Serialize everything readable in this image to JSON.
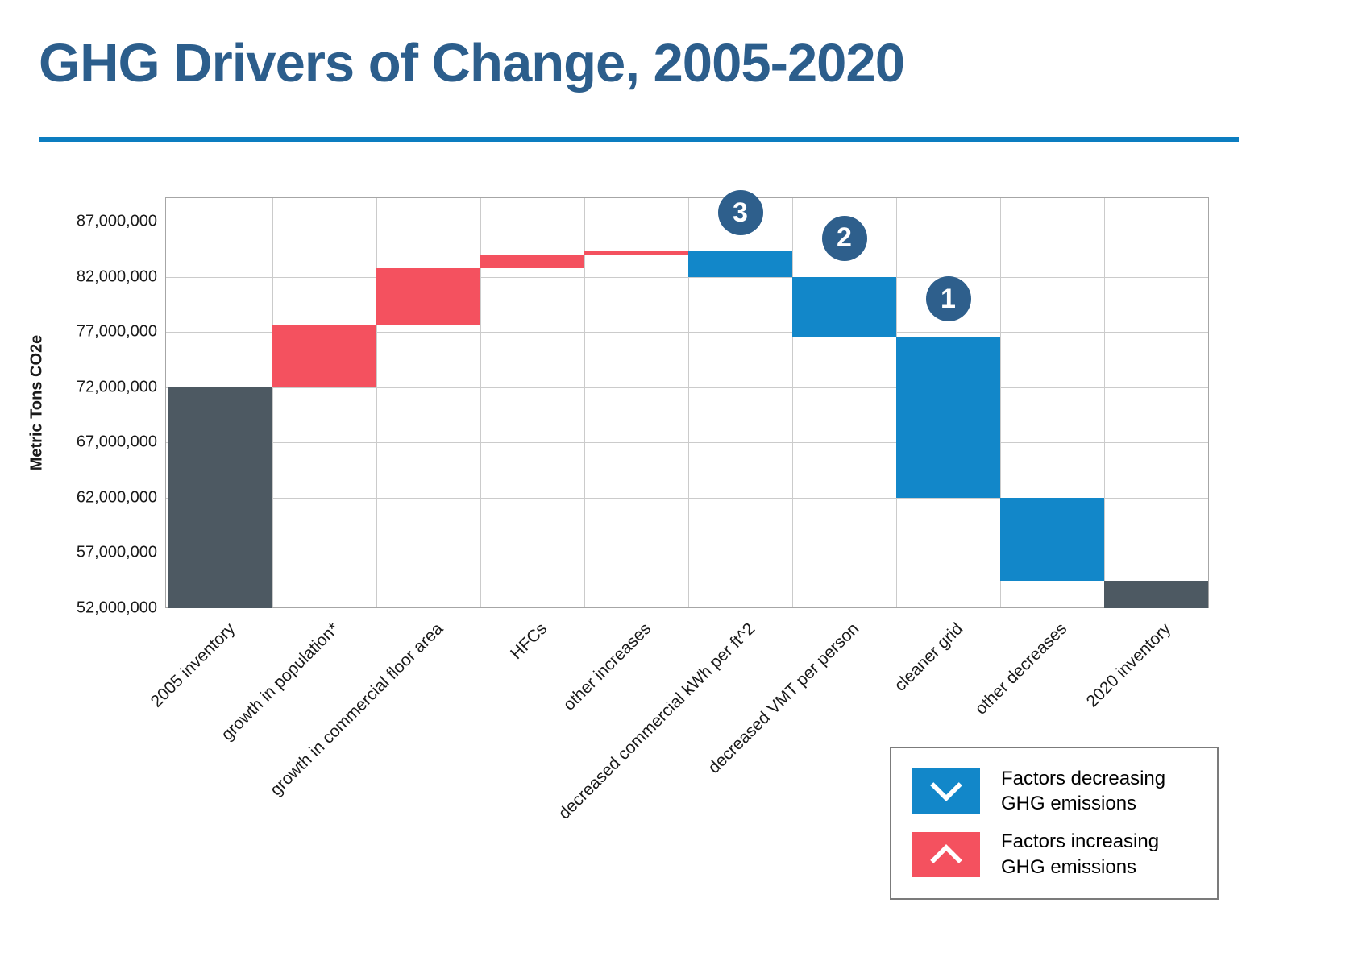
{
  "header": {
    "title": "GHG Drivers of Change, 2005-2020"
  },
  "colors": {
    "title": "#2C5E8C",
    "divider": "#0C7DC0",
    "total_bar": "#4D5962",
    "increase_bar": "#F4515F",
    "decrease_bar": "#1287C9",
    "annotation_circle": "#2E5F8C",
    "gridline": "#CBCBCB",
    "plot_border": "#A6A6A6"
  },
  "chart_data": {
    "type": "waterfall",
    "title": "GHG Drivers of Change, 2005-2020",
    "ylabel": "Metric Tons CO2e",
    "ylim": [
      52000000,
      87000000
    ],
    "yticks": [
      52000000,
      57000000,
      62000000,
      67000000,
      72000000,
      77000000,
      82000000,
      87000000
    ],
    "grid": true,
    "legend_position": "bottom-right",
    "segments": [
      {
        "label": "2005 inventory",
        "kind": "total",
        "start": 52000000,
        "end": 72000000
      },
      {
        "label": "growth in population*",
        "kind": "increase",
        "start": 72000000,
        "end": 77700000
      },
      {
        "label": "growth in  commercial floor area",
        "kind": "increase",
        "start": 77700000,
        "end": 82800000
      },
      {
        "label": "HFCs",
        "kind": "increase",
        "start": 82800000,
        "end": 84000000
      },
      {
        "label": "other increases",
        "kind": "increase",
        "start": 84000000,
        "end": 84300000
      },
      {
        "label": "decreased commercial kWh per ft^2",
        "kind": "decrease",
        "start": 84300000,
        "end": 82000000,
        "annotation": "3"
      },
      {
        "label": "decreased VMT per person",
        "kind": "decrease",
        "start": 82000000,
        "end": 76500000,
        "annotation": "2"
      },
      {
        "label": "cleaner grid",
        "kind": "decrease",
        "start": 76500000,
        "end": 62000000,
        "annotation": "1"
      },
      {
        "label": "other decreases",
        "kind": "decrease",
        "start": 62000000,
        "end": 54500000
      },
      {
        "label": "2020 inventory",
        "kind": "total",
        "start": 54500000,
        "end": 52000000
      }
    ]
  },
  "legend": {
    "items": [
      {
        "icon": "chevron-down-icon",
        "kind": "decrease",
        "label": "Factors decreasing GHG emissions"
      },
      {
        "icon": "chevron-up-icon",
        "kind": "increase",
        "label": "Factors increasing GHG emissions"
      }
    ]
  }
}
